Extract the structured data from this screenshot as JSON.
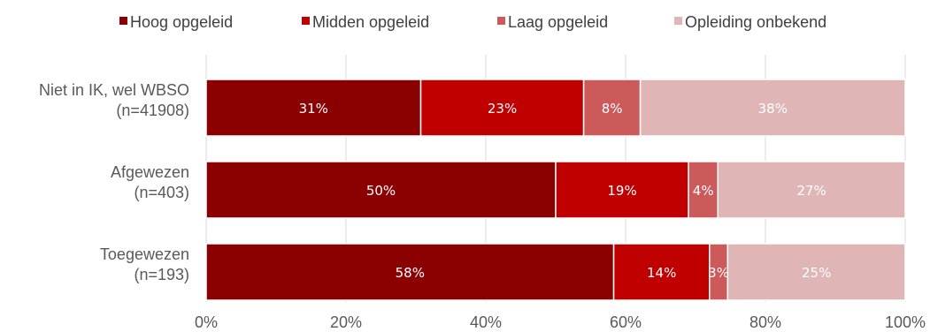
{
  "chart_data": {
    "type": "bar",
    "orientation": "horizontal",
    "stacked": true,
    "categories": [
      [
        "Niet in IK, wel WBSO",
        "(n=41908)"
      ],
      [
        "Afgewezen",
        "(n=403)"
      ],
      [
        "Toegewezen",
        "(n=193)"
      ]
    ],
    "series": [
      {
        "name": "Hoog opgeleid",
        "color": "#8b0000",
        "values": [
          30.7,
          50.0,
          58.3
        ]
      },
      {
        "name": "Midden opgeleid",
        "color": "#c00000",
        "values": [
          23.3,
          19.0,
          13.7
        ]
      },
      {
        "name": "Laag opgeleid",
        "color": "#cc5a5a",
        "values": [
          8.1,
          4.2,
          2.6
        ]
      },
      {
        "name": "Opleiding onbekend",
        "color": "#dfb5b5",
        "values": [
          37.9,
          26.8,
          25.4
        ]
      }
    ],
    "data_labels": [
      [
        "31%",
        "23%",
        "8%",
        "38%"
      ],
      [
        "50%",
        "19%",
        "4%",
        "27%"
      ],
      [
        "58%",
        "14%",
        "3%",
        "25%"
      ]
    ],
    "xlim": [
      0,
      100
    ],
    "xticks": [
      "0%",
      "20%",
      "40%",
      "60%",
      "80%",
      "100%"
    ],
    "grid": true,
    "legend_position": "top"
  }
}
